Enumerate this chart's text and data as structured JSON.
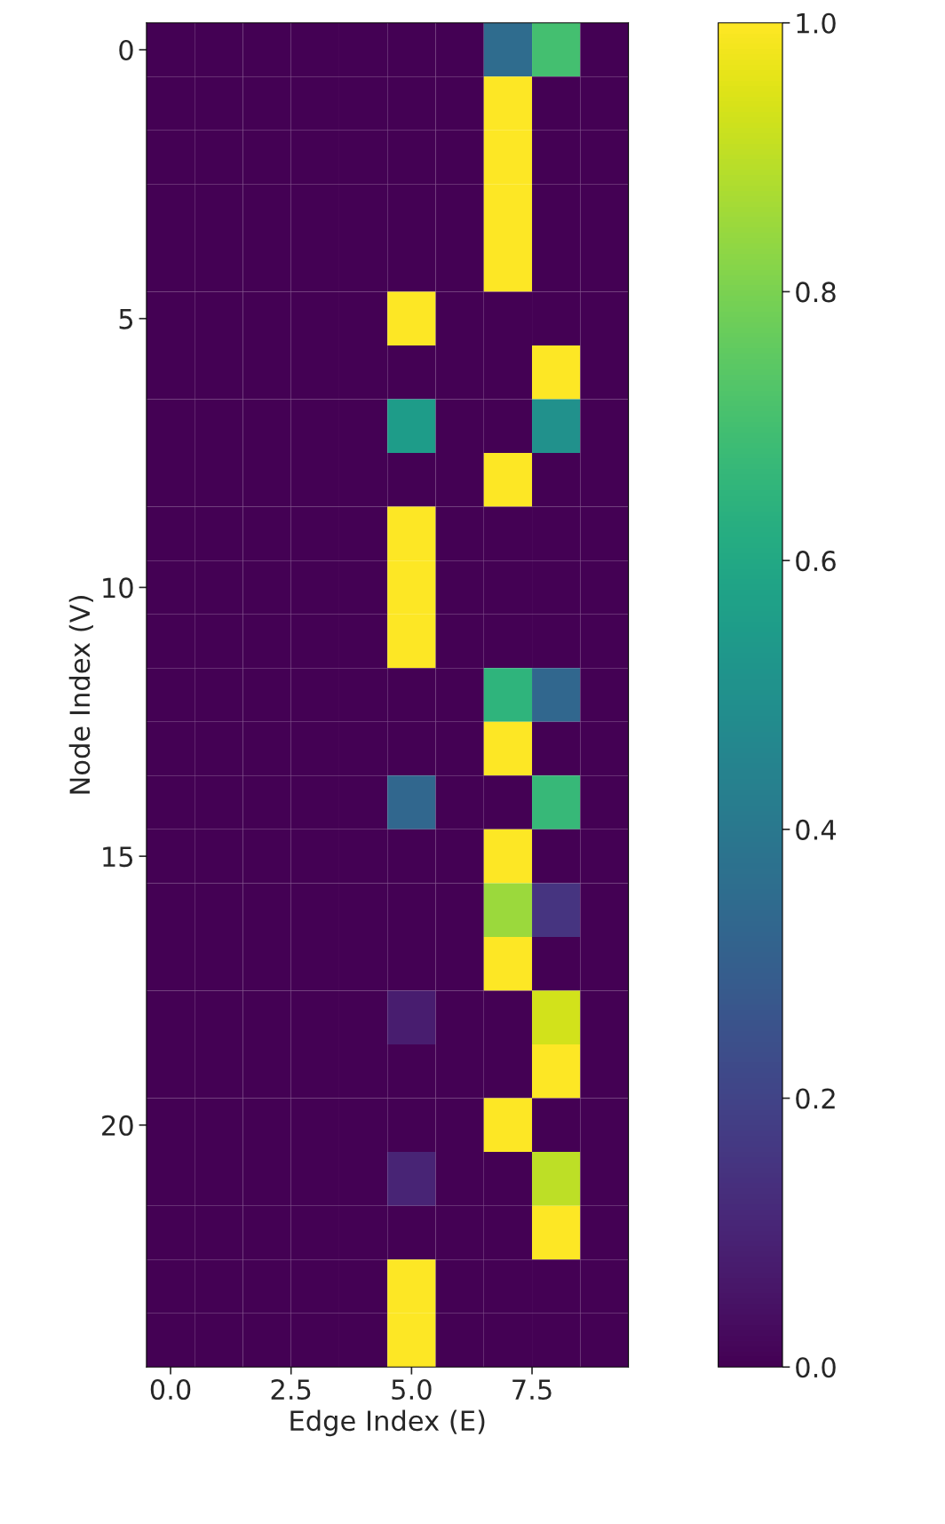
{
  "chart_data": {
    "type": "heatmap",
    "xlabel": "Edge Index (E)",
    "ylabel": "Node Index (V)",
    "x": [
      0,
      1,
      2,
      3,
      4,
      5,
      6,
      7,
      8,
      9
    ],
    "y_categories": [
      "0",
      null,
      null,
      null,
      null,
      "5",
      null,
      null,
      null,
      null,
      "10",
      null,
      null,
      null,
      null,
      "15",
      null,
      null,
      null,
      null,
      "20",
      null,
      null,
      null,
      null
    ],
    "cells": [
      [
        0,
        0,
        0,
        0,
        0,
        0,
        0,
        0.35,
        0.7,
        0
      ],
      [
        0,
        0,
        0,
        0,
        0,
        0,
        0,
        1,
        0,
        0
      ],
      [
        0,
        0,
        0,
        0,
        0,
        0,
        0,
        1,
        0,
        0
      ],
      [
        0,
        0,
        0,
        0,
        0,
        0,
        0,
        1,
        0,
        0
      ],
      [
        0,
        0,
        0,
        0,
        0,
        0,
        0,
        1,
        0,
        0
      ],
      [
        0,
        0,
        0,
        0,
        0,
        1,
        0,
        0,
        0,
        0
      ],
      [
        0,
        0,
        0,
        0,
        0,
        0,
        0,
        0,
        1,
        0
      ],
      [
        0,
        0,
        0,
        0,
        0,
        0.55,
        0,
        0,
        0.5,
        0
      ],
      [
        0,
        0,
        0,
        0,
        0,
        0,
        0,
        1,
        0,
        0
      ],
      [
        0,
        0,
        0,
        0,
        0,
        1,
        0,
        0,
        0,
        0
      ],
      [
        0,
        0,
        0,
        0,
        0,
        1,
        0,
        0,
        0,
        0
      ],
      [
        0,
        0,
        0,
        0,
        0,
        1,
        0,
        0,
        0,
        0
      ],
      [
        0,
        0,
        0,
        0,
        0,
        0,
        0,
        0.65,
        0.33,
        0
      ],
      [
        0,
        0,
        0,
        0,
        0,
        0,
        0,
        1,
        0,
        0
      ],
      [
        0,
        0,
        0,
        0,
        0,
        0.33,
        0,
        0,
        0.67,
        0
      ],
      [
        0,
        0,
        0,
        0,
        0,
        0,
        0,
        1,
        0,
        0
      ],
      [
        0,
        0,
        0,
        0,
        0,
        0,
        0,
        0.85,
        0.15,
        0
      ],
      [
        0,
        0,
        0,
        0,
        0,
        0,
        0,
        1,
        0,
        0
      ],
      [
        0,
        0,
        0,
        0,
        0,
        0.08,
        0,
        0,
        0.93,
        0
      ],
      [
        0,
        0,
        0,
        0,
        0,
        0,
        0,
        0,
        1,
        0
      ],
      [
        0,
        0,
        0,
        0,
        0,
        0,
        0,
        1,
        0,
        0
      ],
      [
        0,
        0,
        0,
        0,
        0,
        0.1,
        0,
        0,
        0.9,
        0
      ],
      [
        0,
        0,
        0,
        0,
        0,
        0,
        0,
        0,
        1,
        0
      ],
      [
        0,
        0,
        0,
        0,
        0,
        1,
        0,
        0,
        0,
        0
      ],
      [
        0,
        0,
        0,
        0,
        0,
        1,
        0,
        0,
        0,
        0
      ]
    ],
    "clim": [
      0,
      1
    ],
    "cticks": [
      {
        "value": 0,
        "label": "0.0"
      },
      {
        "value": 0.2,
        "label": "0.2"
      },
      {
        "value": 0.4,
        "label": "0.4"
      },
      {
        "value": 0.6,
        "label": "0.6"
      },
      {
        "value": 0.8,
        "label": "0.8"
      },
      {
        "value": 1,
        "label": "1.0"
      }
    ],
    "xlim": [
      -0.5,
      9.5
    ],
    "xticks": [
      {
        "value": 0,
        "label": "0.0"
      },
      2.5,
      {
        "value": 5,
        "label": "5.0"
      },
      7.5
    ]
  }
}
